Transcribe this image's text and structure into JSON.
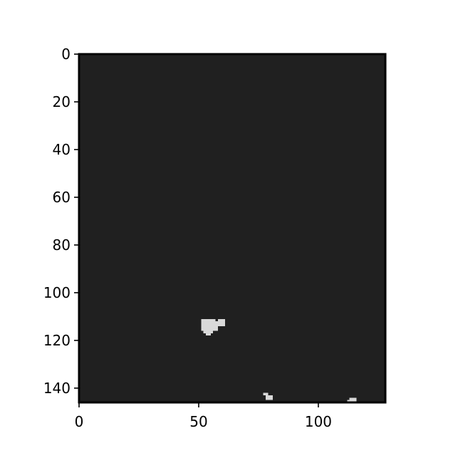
{
  "chart_data": {
    "type": "heatmap",
    "colormap": "gray",
    "title": "",
    "xlabel": "",
    "ylabel": "",
    "image_width": 128,
    "image_height": 146,
    "xlim": [
      0,
      128
    ],
    "ylim": [
      146,
      0
    ],
    "x_ticks": [
      0,
      50,
      100
    ],
    "y_ticks": [
      0,
      20,
      40,
      60,
      80,
      100,
      120,
      140
    ],
    "x_tick_labels": [
      "0",
      "50",
      "100"
    ],
    "y_tick_labels": [
      "0",
      "20",
      "40",
      "60",
      "80",
      "100",
      "120",
      "140"
    ],
    "background_value": 0.12,
    "blob_value": 0.85,
    "background_color": "#202020",
    "blob_color": "#d9d9d9",
    "bright_regions": [
      {
        "x0": 51,
        "x1": 57,
        "y0": 111,
        "y1": 116
      },
      {
        "x0": 57,
        "x1": 58,
        "y0": 112,
        "y1": 116
      },
      {
        "x0": 58,
        "x1": 61,
        "y0": 111,
        "y1": 114
      },
      {
        "x0": 52,
        "x1": 56,
        "y0": 116,
        "y1": 117
      },
      {
        "x0": 53,
        "x1": 55,
        "y0": 117,
        "y1": 118
      },
      {
        "x0": 77,
        "x1": 79,
        "y0": 142,
        "y1": 143
      },
      {
        "x0": 78,
        "x1": 81,
        "y0": 143,
        "y1": 145
      },
      {
        "x0": 113,
        "x1": 116,
        "y0": 144,
        "y1": 146
      },
      {
        "x0": 112,
        "x1": 113,
        "y0": 145,
        "y1": 146
      }
    ]
  }
}
